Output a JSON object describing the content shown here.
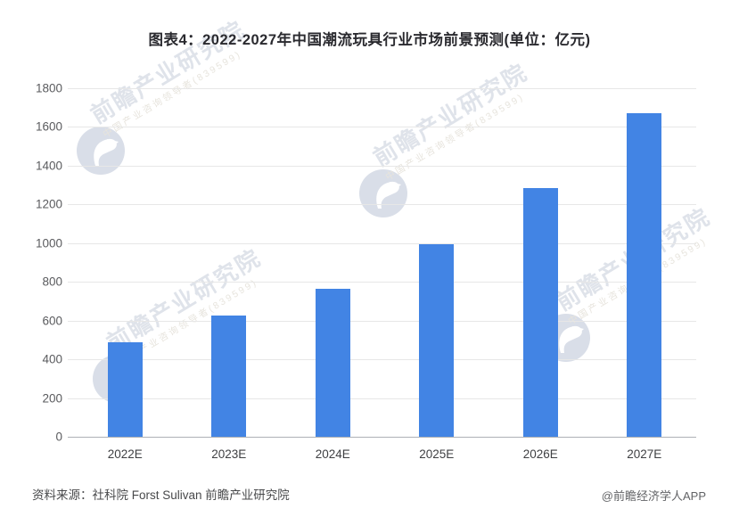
{
  "header": {
    "title": "图表4：2022-2027年中国潮流玩具行业市场前景预测(单位：亿元)"
  },
  "chart_data": {
    "type": "bar",
    "title": "图表4：2022-2027年中国潮流玩具行业市场前景预测(单位：亿元)",
    "categories": [
      "2022E",
      "2023E",
      "2024E",
      "2025E",
      "2026E",
      "2027E"
    ],
    "values": [
      490,
      625,
      763,
      993,
      1286,
      1670
    ],
    "unit": "亿元",
    "xlabel": "",
    "ylabel": "",
    "ylim": [
      0,
      1800
    ],
    "yticks": [
      0,
      200,
      400,
      600,
      800,
      1000,
      1200,
      1400,
      1600,
      1800
    ],
    "grid": true,
    "legend": "none",
    "bar_color": "#4284e4"
  },
  "watermark": {
    "logo": "qianzhan-bird-logo",
    "text": "前瞻产业研究院",
    "subtext": "中国产业咨询领导者(839599)"
  },
  "footer": {
    "source": "资料来源：社科院 Forst Sulivan 前瞻产业研究院",
    "brand": "@前瞻经济学人APP"
  },
  "colors": {
    "bar": "#4284e4",
    "title_text": "#2a2a2f",
    "gridline": "#e7e7e7",
    "axis_baseline": "#aeb1b6",
    "tick_label": "#5a5b5e",
    "watermark_text": "#dfe3ea"
  }
}
